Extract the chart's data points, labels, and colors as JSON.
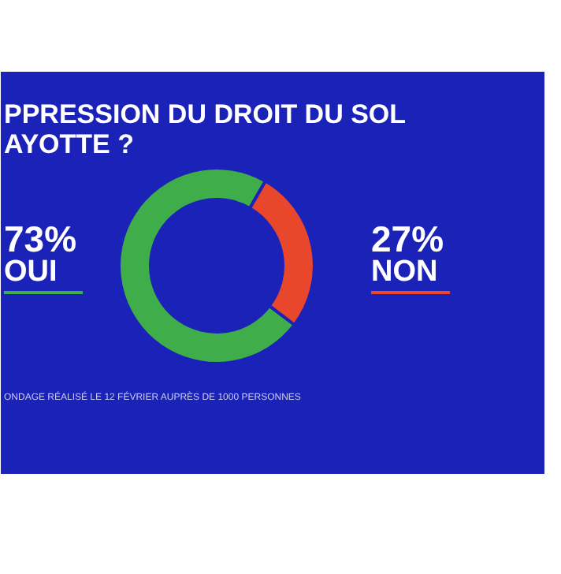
{
  "chart_data": {
    "type": "donut",
    "title": "PPRESSION DU DROIT DU SOL\nAYOTTE ?",
    "categories": [
      "OUI",
      "NON"
    ],
    "values": [
      73,
      27
    ],
    "value_labels": [
      "73%",
      "27%"
    ],
    "colors": [
      "#3fae4a",
      "#e8472c"
    ],
    "annotations": [
      "ONDAGE RÉALISÉ LE 12 FÉVRIER AUPRÈS DE 1000 PERSONNES"
    ]
  }
}
